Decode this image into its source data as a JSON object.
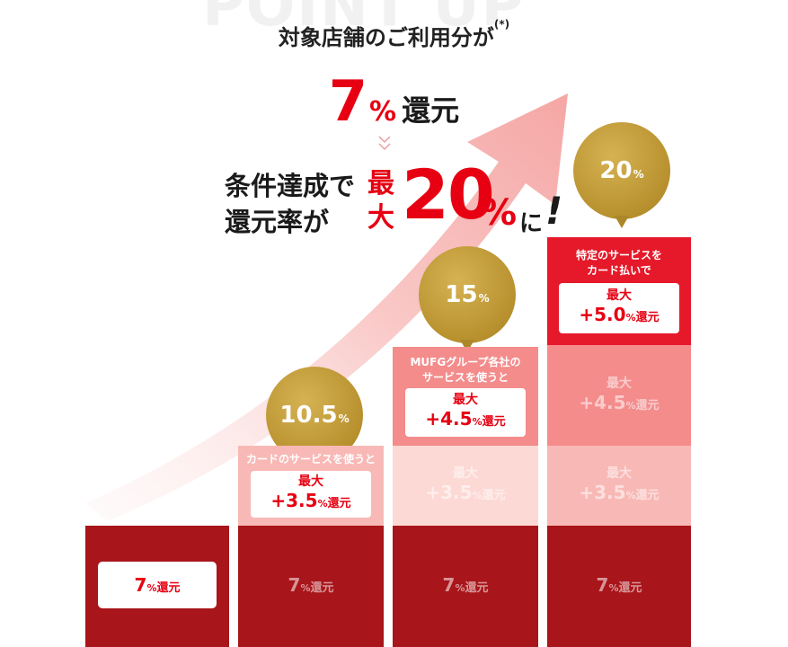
{
  "background_word": "POINT UP",
  "heading": {
    "text": "対象店舗のご利用分が",
    "note": "(*)"
  },
  "base_rate": {
    "number": "7",
    "percent": "%",
    "word": "還元"
  },
  "condition": {
    "line1": "条件達成で",
    "line2": "還元率が",
    "max_top": "最",
    "max_bottom": "大",
    "big_number": "20",
    "percent": "%",
    "suffix": "に",
    "exclaim": "!"
  },
  "columns": [
    {
      "base": {
        "number": "7",
        "percent": "%",
        "word": "還元"
      }
    },
    {
      "bubble": {
        "number": "10.5",
        "percent": "%"
      },
      "highlight": {
        "label": "カードのサービスを使うと",
        "max_label": "最大",
        "value": "+3.5",
        "percent": "%",
        "word": "還元"
      },
      "base": {
        "number": "7",
        "percent": "%",
        "word": "還元"
      }
    },
    {
      "bubble": {
        "number": "15",
        "percent": "%"
      },
      "highlight": {
        "label_line1": "MUFGグループ各社の",
        "label_line2": "サービスを使うと",
        "max_label": "最大",
        "value": "+4.5",
        "percent": "%",
        "word": "還元"
      },
      "ghost_1": {
        "max_label": "最大",
        "value": "+3.5",
        "percent": "%",
        "word": "還元"
      },
      "base": {
        "number": "7",
        "percent": "%",
        "word": "還元"
      }
    },
    {
      "bubble": {
        "number": "20",
        "percent": "%"
      },
      "highlight": {
        "label_line1": "特定のサービスを",
        "label_line2": "カード払いで",
        "max_label": "最大",
        "value": "+5.0",
        "percent": "%",
        "word": "還元"
      },
      "ghost_2": {
        "max_label": "最大",
        "value": "+4.5",
        "percent": "%",
        "word": "還元"
      },
      "ghost_1": {
        "max_label": "最大",
        "value": "+3.5",
        "percent": "%",
        "word": "還元"
      },
      "base": {
        "number": "7",
        "percent": "%",
        "word": "還元"
      }
    }
  ],
  "colors": {
    "accent_red": "#e60012",
    "dark_red": "#a8151a",
    "gold": "#b8912e"
  }
}
